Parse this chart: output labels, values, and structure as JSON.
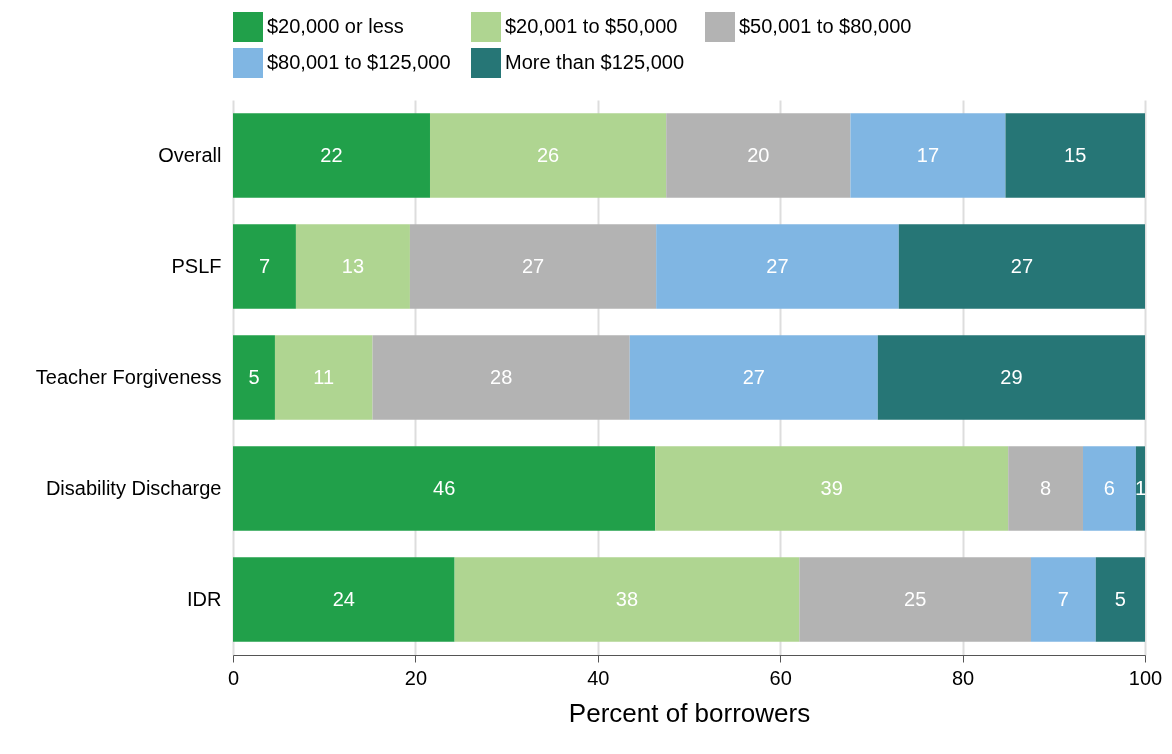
{
  "chart_data": {
    "type": "bar",
    "orientation": "horizontal",
    "stacked": true,
    "xlabel": "Percent of borrowers",
    "categories": [
      "Overall",
      "PSLF",
      "Teacher Forgiveness",
      "Disability Discharge",
      "IDR"
    ],
    "series": [
      {
        "name": "$20,000 or less",
        "color": "#21a04a",
        "values": [
          21.6,
          6.9,
          4.6,
          46.3,
          24.3
        ],
        "value_labels": [
          "22",
          "7",
          "5",
          "46",
          "24"
        ]
      },
      {
        "name": "$20,001 to $50,000",
        "color": "#afd591",
        "values": [
          25.9,
          12.5,
          10.7,
          38.7,
          37.8
        ],
        "value_labels": [
          "26",
          "13",
          "11",
          "39",
          "38"
        ]
      },
      {
        "name": "$50,001 to $80,000",
        "color": "#b3b3b3",
        "values": [
          20.2,
          27.0,
          28.2,
          8.2,
          25.4
        ],
        "value_labels": [
          "20",
          "27",
          "28",
          "8",
          "25"
        ]
      },
      {
        "name": "$80,001 to $125,000",
        "color": "#80b6e3",
        "values": [
          17.0,
          26.6,
          27.2,
          5.8,
          7.1
        ],
        "value_labels": [
          "17",
          "27",
          "27",
          "6",
          "7"
        ]
      },
      {
        "name": "More than $125,000",
        "color": "#267676",
        "values": [
          15.3,
          27.0,
          29.3,
          1.0,
          5.4
        ],
        "value_labels": [
          "15",
          "27",
          "29",
          "1",
          "5"
        ]
      }
    ],
    "xlim": [
      0,
      100
    ],
    "xticks": [
      0,
      20,
      40,
      60,
      80,
      100
    ],
    "grid": "x",
    "legend": "top"
  }
}
